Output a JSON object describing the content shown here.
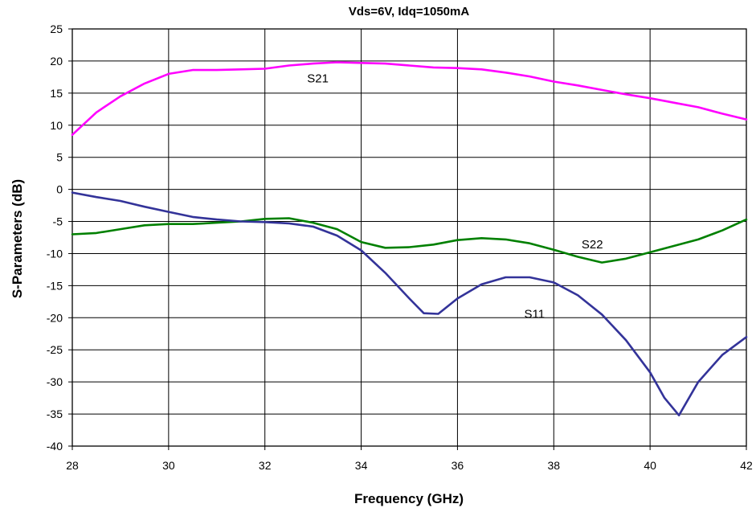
{
  "chart_data": {
    "type": "line",
    "title": "Vds=6V, Idq=1050mA",
    "xlabel": "Frequency (GHz)",
    "ylabel": "S-Parameters (dB)",
    "xlim": [
      28,
      42
    ],
    "ylim": [
      -40,
      25
    ],
    "xticks": [
      28,
      30,
      32,
      34,
      36,
      38,
      40,
      42
    ],
    "yticks": [
      25,
      20,
      15,
      10,
      5,
      0,
      -5,
      -10,
      -15,
      -20,
      -25,
      -30,
      -35,
      -40
    ],
    "grid": true,
    "series": [
      {
        "name": "S21",
        "color": "#ff00ff",
        "x": [
          28,
          28.5,
          29,
          29.5,
          30,
          30.5,
          31,
          31.5,
          32,
          32.5,
          33,
          33.5,
          34,
          34.5,
          35,
          35.5,
          36,
          36.5,
          37,
          37.5,
          38,
          38.5,
          39,
          39.5,
          40,
          40.5,
          41,
          41.5,
          42
        ],
        "y": [
          8.5,
          12,
          14.5,
          16.5,
          18,
          18.6,
          18.6,
          18.7,
          18.8,
          19.3,
          19.6,
          19.8,
          19.7,
          19.6,
          19.3,
          19.0,
          18.9,
          18.7,
          18.2,
          17.6,
          16.8,
          16.2,
          15.5,
          14.8,
          14.2,
          13.5,
          12.8,
          11.8,
          10.9
        ]
      },
      {
        "name": "S22",
        "color": "#008000",
        "x": [
          28,
          28.5,
          29,
          29.5,
          30,
          30.5,
          31,
          31.5,
          32,
          32.5,
          33,
          33.5,
          34,
          34.5,
          35,
          35.5,
          36,
          36.5,
          37,
          37.5,
          38,
          38.5,
          39,
          39.5,
          40,
          40.5,
          41,
          41.5,
          42
        ],
        "y": [
          -7,
          -6.8,
          -6.2,
          -5.6,
          -5.4,
          -5.4,
          -5.2,
          -5.0,
          -4.6,
          -4.5,
          -5.2,
          -6.2,
          -8.2,
          -9.1,
          -9.0,
          -8.6,
          -7.9,
          -7.6,
          -7.8,
          -8.4,
          -9.4,
          -10.5,
          -11.4,
          -10.8,
          -9.8,
          -8.8,
          -7.8,
          -6.4,
          -4.7
        ]
      },
      {
        "name": "S11",
        "color": "#333399",
        "x": [
          28,
          28.5,
          29,
          29.5,
          30,
          30.5,
          31,
          31.5,
          32,
          32.5,
          33,
          33.5,
          34,
          34.5,
          35,
          35.3,
          35.6,
          36,
          36.5,
          37,
          37.5,
          38,
          38.5,
          39,
          39.5,
          40,
          40.3,
          40.6,
          41,
          41.5,
          42
        ],
        "y": [
          -0.5,
          -1.2,
          -1.8,
          -2.7,
          -3.5,
          -4.3,
          -4.7,
          -5.0,
          -5.1,
          -5.3,
          -5.8,
          -7.2,
          -9.5,
          -13.0,
          -17.0,
          -19.3,
          -19.4,
          -17.0,
          -14.8,
          -13.7,
          -13.7,
          -14.5,
          -16.5,
          -19.5,
          -23.5,
          -28.5,
          -32.5,
          -35.2,
          -30.0,
          -25.8,
          -23.0
        ]
      }
    ],
    "annotations": [
      {
        "text": "S21",
        "x": 33.1,
        "y": 16.7
      },
      {
        "text": "S22",
        "x": 38.8,
        "y": -9.2
      },
      {
        "text": "S11",
        "x": 37.6,
        "y": -20.0
      }
    ]
  }
}
